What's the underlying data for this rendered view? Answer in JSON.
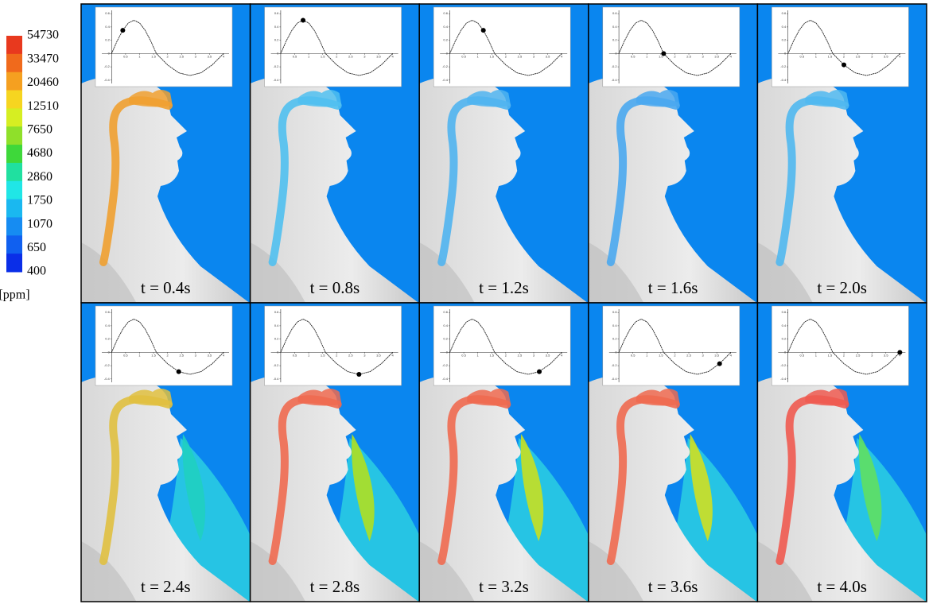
{
  "colorbar": {
    "ticks": [
      "54730",
      "33470",
      "20460",
      "12510",
      "7650",
      "4680",
      "2860",
      "1750",
      "1070",
      "650",
      "400"
    ],
    "unit": "[ppm]",
    "colors": [
      "#e8391e",
      "#f06a1c",
      "#f5a020",
      "#f6d520",
      "#d6ee22",
      "#8fe02a",
      "#3ed83a",
      "#20e0a0",
      "#20e6e6",
      "#1ab8f0",
      "#168cf2",
      "#1060f0",
      "#0a2ee8"
    ]
  },
  "inset": {
    "xlim": [
      -0.35,
      4.2
    ],
    "ylim": [
      -0.45,
      0.65
    ],
    "xticks": [
      0.5,
      1,
      1.5,
      2,
      2.5,
      3,
      3.5,
      4
    ],
    "yticks": [
      0.6,
      0.4,
      0.2,
      0,
      -0.2,
      -0.4
    ],
    "curve": {
      "x": [
        0,
        0.2,
        0.4,
        0.6,
        0.8,
        1.0,
        1.2,
        1.4,
        1.6,
        2.0,
        2.4,
        2.8,
        3.2,
        3.6,
        4.0
      ],
      "y": [
        0,
        0.19,
        0.35,
        0.46,
        0.5,
        0.46,
        0.35,
        0.19,
        0,
        -0.17,
        -0.29,
        -0.33,
        -0.29,
        -0.17,
        0
      ]
    }
  },
  "panels": [
    {
      "label": "t = 0.4s",
      "dot": [
        0.4,
        0.35
      ],
      "airway_color": "#f0a030"
    },
    {
      "label": "t = 0.8s",
      "dot": [
        0.8,
        0.5
      ],
      "airway_color": "#50c0f0"
    },
    {
      "label": "t = 1.2s",
      "dot": [
        1.2,
        0.35
      ],
      "airway_color": "#50b4f0"
    },
    {
      "label": "t = 1.6s",
      "dot": [
        1.6,
        0
      ],
      "airway_color": "#4aa8f0"
    },
    {
      "label": "t = 2.0s",
      "dot": [
        2.0,
        -0.17
      ],
      "airway_color": "#50b8f0"
    },
    {
      "label": "t = 2.4s",
      "dot": [
        2.4,
        -0.29
      ],
      "airway_color": "#e0c040",
      "plume_color": "#20d0c0"
    },
    {
      "label": "t = 2.8s",
      "dot": [
        2.8,
        -0.33
      ],
      "airway_color": "#ef6a50",
      "plume_color": "#b0e020"
    },
    {
      "label": "t = 3.2s",
      "dot": [
        3.2,
        -0.29
      ],
      "airway_color": "#ef6a50",
      "plume_color": "#c8e020"
    },
    {
      "label": "t = 3.6s",
      "dot": [
        3.6,
        -0.17
      ],
      "airway_color": "#ef6a50",
      "plume_color": "#d0e020"
    },
    {
      "label": "t = 4.0s",
      "dot": [
        4.0,
        0
      ],
      "airway_color": "#ef5a50",
      "plume_color": "#60e060"
    }
  ]
}
